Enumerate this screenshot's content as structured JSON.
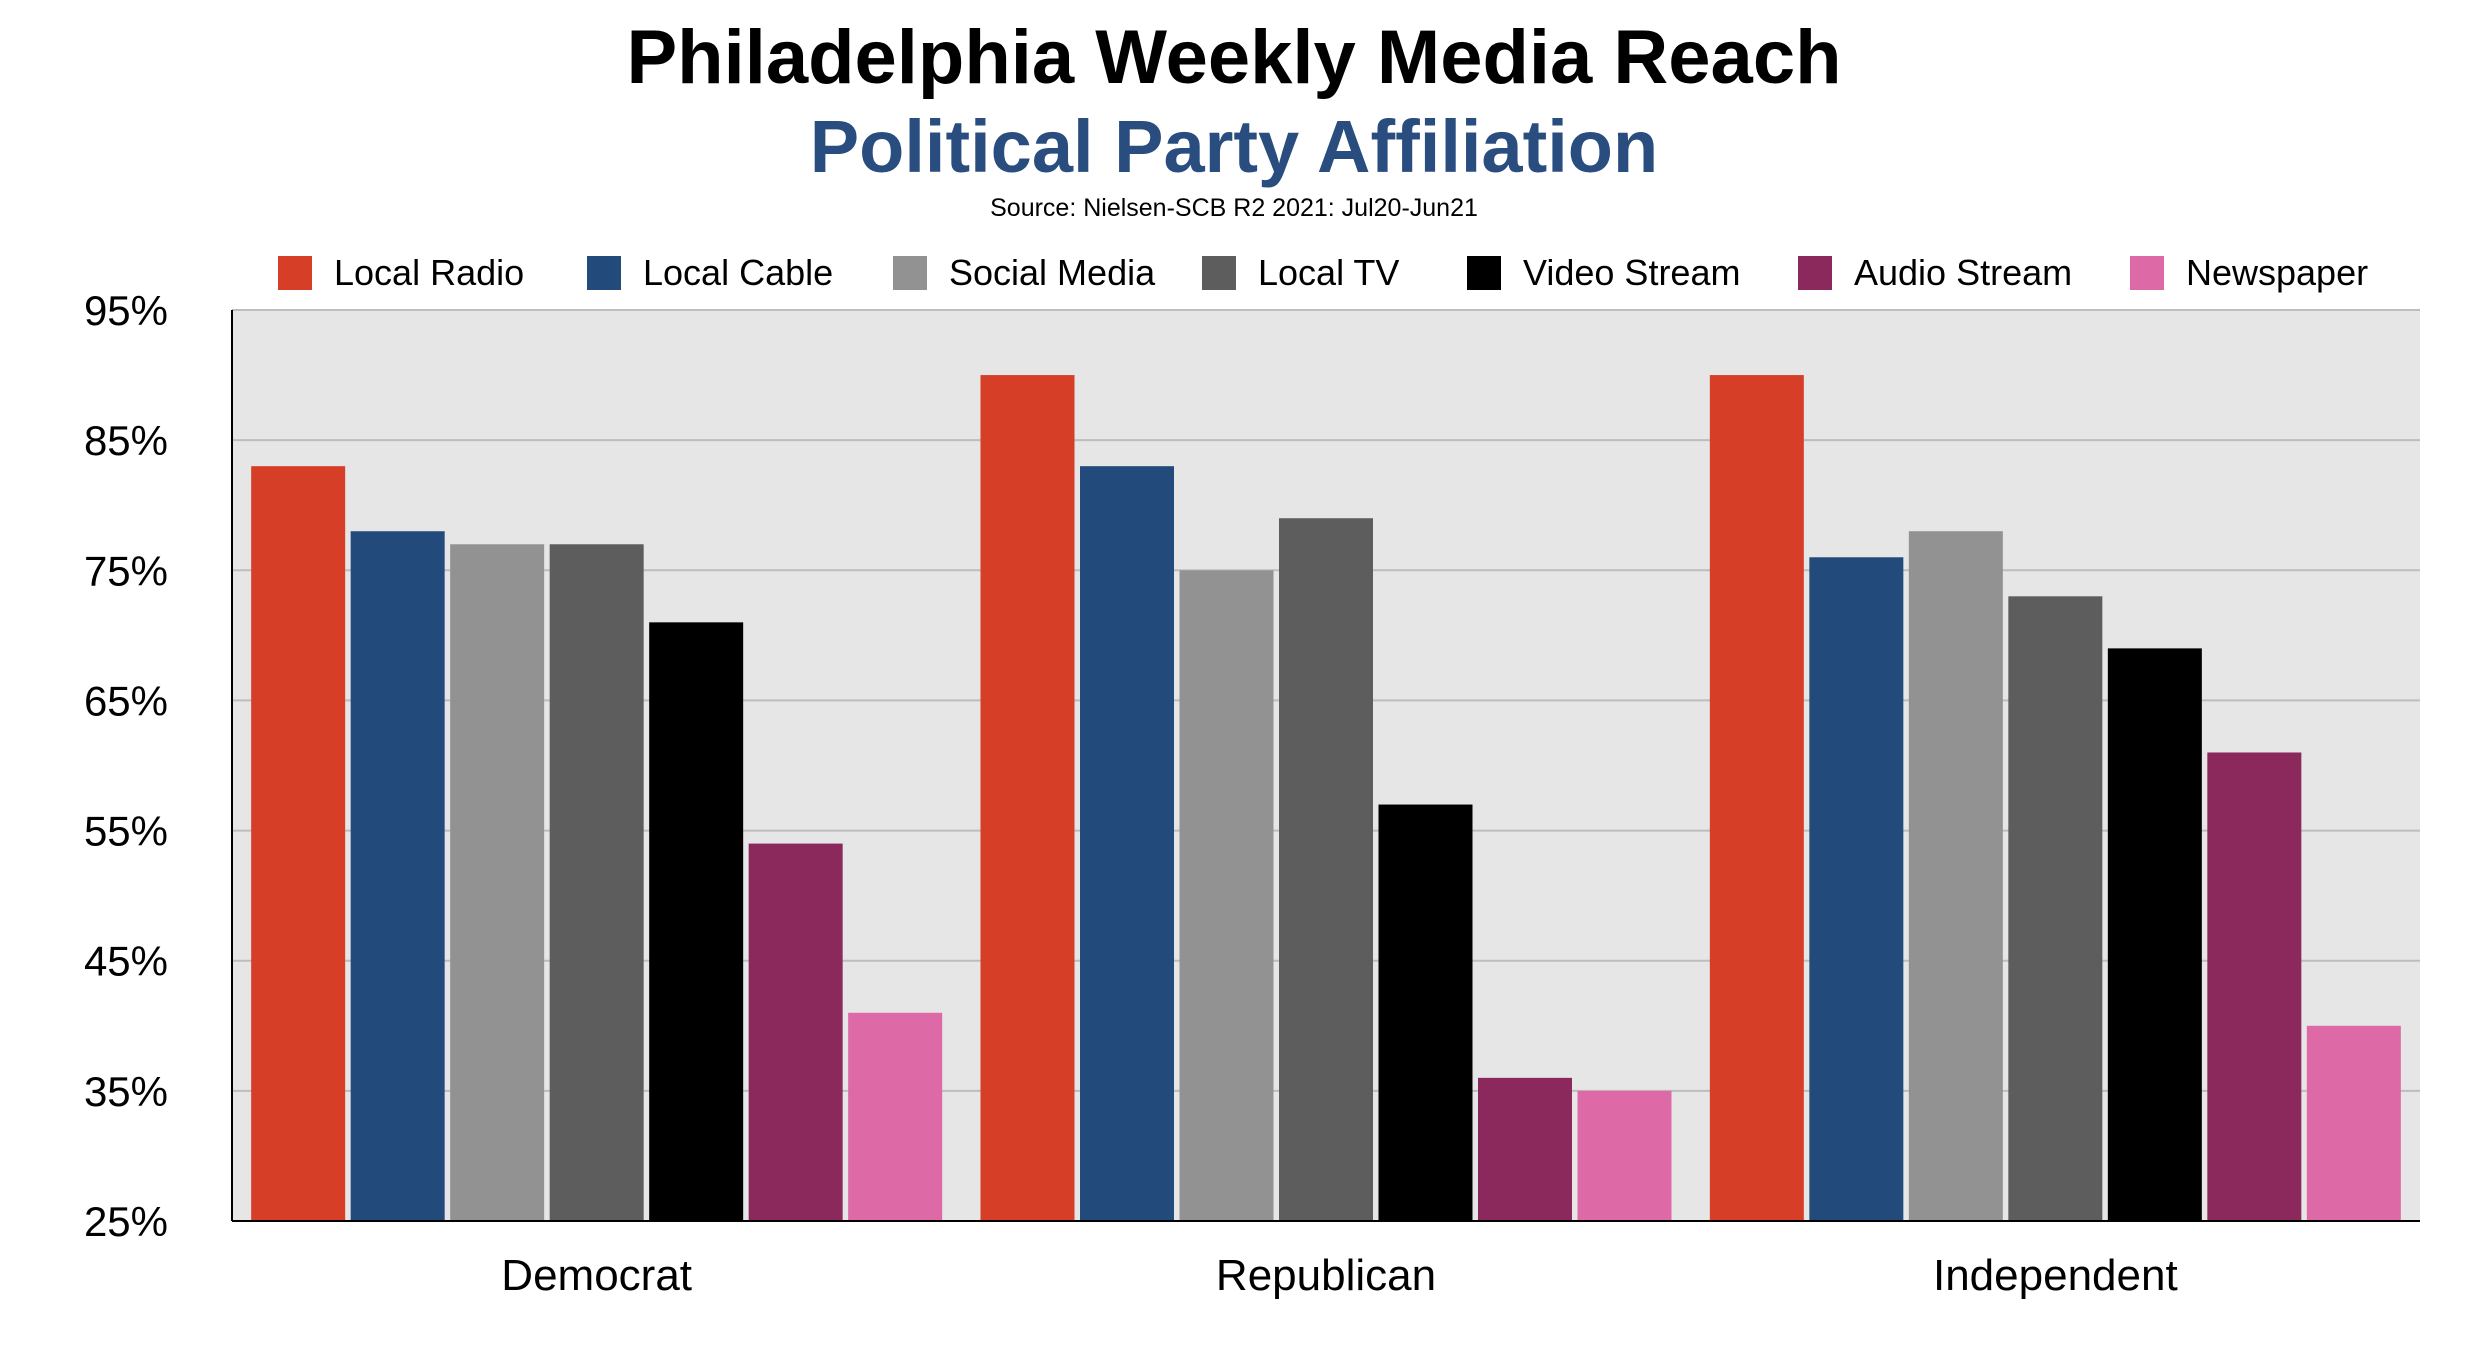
{
  "chart_data": {
    "type": "bar",
    "title": "Philadelphia Weekly Media Reach",
    "subtitle": "Political Party Affiliation",
    "source": "Source: Nielsen-SCB R2 2021:  Jul20-Jun21",
    "categories": [
      "Democrat",
      "Republican",
      "Independent"
    ],
    "series": [
      {
        "name": "Local Radio",
        "color": "#d63e27",
        "values": [
          83,
          90,
          90
        ]
      },
      {
        "name": "Local Cable",
        "color": "#224b7b",
        "values": [
          78,
          83,
          76
        ]
      },
      {
        "name": "Social Media",
        "color": "#929292",
        "values": [
          77,
          75,
          78
        ]
      },
      {
        "name": "Local TV",
        "color": "#5d5d5d",
        "values": [
          77,
          79,
          73
        ]
      },
      {
        "name": "Video Stream",
        "color": "#000000",
        "values": [
          71,
          57,
          69
        ]
      },
      {
        "name": "Audio Stream",
        "color": "#8b285c",
        "values": [
          54,
          36,
          61
        ]
      },
      {
        "name": "Newspaper",
        "color": "#dd6aa6",
        "values": [
          41,
          35,
          40
        ]
      }
    ],
    "ylim": [
      25,
      95
    ],
    "yticks": [
      25,
      35,
      45,
      55,
      65,
      75,
      85,
      95
    ],
    "ytick_labels": [
      "25%",
      "35%",
      "45%",
      "55%",
      "65%",
      "75%",
      "85%",
      "95%"
    ],
    "grid": true,
    "legend_position": "top",
    "plot_background": "#e6e6e6"
  }
}
